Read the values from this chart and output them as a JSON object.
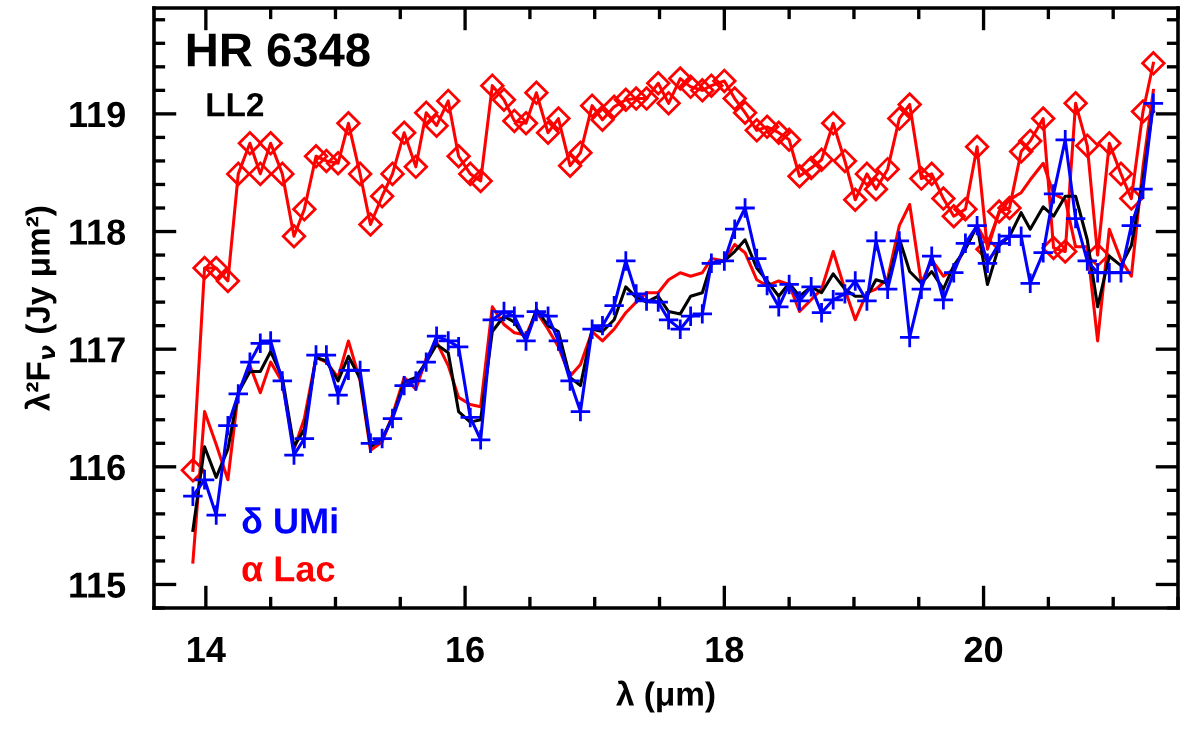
{
  "chart_data": {
    "type": "line",
    "xlabel": "λ (μm)",
    "ylabel": "λ²F$_{ν}$ (Jy μm²)",
    "annotations": [
      "HR 6348",
      "LL2"
    ],
    "x": [
      13.9,
      13.99,
      14.08,
      14.17,
      14.25,
      14.34,
      14.42,
      14.5,
      14.59,
      14.68,
      14.76,
      14.85,
      14.93,
      15.02,
      15.1,
      15.19,
      15.27,
      15.36,
      15.44,
      15.53,
      15.62,
      15.7,
      15.78,
      15.87,
      15.95,
      16.04,
      16.12,
      16.21,
      16.3,
      16.38,
      16.47,
      16.55,
      16.64,
      16.72,
      16.81,
      16.89,
      16.98,
      17.06,
      17.15,
      17.24,
      17.32,
      17.4,
      17.49,
      17.57,
      17.66,
      17.74,
      17.83,
      17.9,
      18.0,
      18.08,
      18.16,
      18.25,
      18.33,
      18.42,
      18.5,
      18.58,
      18.67,
      18.75,
      18.84,
      18.93,
      19.01,
      19.1,
      19.17,
      19.26,
      19.35,
      19.43,
      19.52,
      19.6,
      19.69,
      19.77,
      19.86,
      19.95,
      20.03,
      20.12,
      20.2,
      20.29,
      20.36,
      20.46,
      20.54,
      20.63,
      20.71,
      20.8,
      20.88,
      20.97,
      21.06,
      21.14,
      21.23,
      21.31
    ],
    "series": [
      {
        "color": "#ff0000",
        "marker": "diamond",
        "values": [
          115.97,
          117.69,
          117.69,
          117.58,
          118.49,
          118.75,
          118.49,
          118.75,
          118.49,
          117.96,
          118.19,
          118.64,
          118.6,
          118.58,
          118.92,
          118.49,
          118.06,
          118.3,
          118.49,
          118.84,
          118.55,
          119.01,
          118.9,
          119.11,
          118.64,
          118.49,
          118.43,
          119.24,
          119.12,
          118.94,
          118.92,
          119.18,
          118.84,
          118.96,
          118.56,
          118.67,
          119.07,
          118.95,
          119.06,
          119.12,
          119.13,
          119.13,
          119.26,
          119.09,
          119.3,
          119.23,
          119.2,
          119.24,
          119.28,
          119.13,
          119.01,
          118.86,
          118.89,
          118.84,
          118.78,
          118.47,
          118.54,
          118.61,
          118.92,
          118.6,
          118.27,
          118.49,
          118.36,
          118.53,
          118.96,
          119.08,
          118.45,
          118.49,
          118.28,
          118.13,
          118.19,
          118.72,
          117.85,
          118.17,
          118.2,
          118.68,
          118.77,
          118.96,
          117.86,
          117.83,
          119.09,
          118.73,
          117.8,
          118.75,
          118.49,
          118.28,
          119.02,
          119.43
        ]
      },
      {
        "name": "α Lac",
        "color": "#ff0000",
        "marker": "none",
        "values": [
          115.19,
          116.47,
          116.19,
          115.89,
          116.63,
          116.86,
          116.63,
          116.89,
          116.72,
          116.15,
          116.41,
          116.93,
          116.89,
          116.76,
          117.07,
          116.73,
          116.14,
          116.21,
          116.44,
          116.76,
          116.66,
          116.92,
          117.06,
          116.86,
          116.59,
          116.53,
          116.51,
          117.36,
          117.21,
          117.14,
          117.12,
          117.32,
          117.17,
          117.02,
          116.77,
          116.87,
          117.15,
          117.07,
          117.17,
          117.31,
          117.4,
          117.48,
          117.48,
          117.59,
          117.65,
          117.62,
          117.65,
          117.77,
          117.75,
          117.89,
          117.82,
          117.59,
          117.54,
          117.58,
          117.55,
          117.32,
          117.42,
          117.51,
          117.83,
          117.51,
          117.25,
          117.48,
          117.51,
          117.6,
          118.05,
          118.23,
          117.56,
          117.76,
          117.62,
          117.68,
          117.86,
          118.05,
          117.89,
          118.16,
          118.27,
          118.33,
          118.44,
          118.58,
          118.32,
          118.27,
          117.87,
          117.87,
          117.07,
          118.02,
          117.76,
          117.62,
          118.55,
          119.2
        ]
      },
      {
        "color": "#000000",
        "marker": "none",
        "values": [
          115.46,
          116.17,
          115.91,
          116.15,
          116.63,
          116.81,
          116.81,
          116.98,
          116.76,
          116.17,
          116.32,
          116.93,
          116.9,
          116.73,
          116.94,
          116.75,
          116.17,
          116.24,
          116.42,
          116.72,
          116.76,
          116.89,
          117.04,
          116.97,
          116.47,
          116.38,
          116.4,
          117.15,
          117.28,
          117.23,
          117.08,
          117.34,
          117.2,
          117.15,
          116.76,
          116.69,
          117.17,
          117.15,
          117.25,
          117.53,
          117.44,
          117.4,
          117.45,
          117.32,
          117.3,
          117.45,
          117.48,
          117.73,
          117.75,
          117.83,
          117.93,
          117.69,
          117.58,
          117.45,
          117.56,
          117.45,
          117.53,
          117.48,
          117.64,
          117.51,
          117.45,
          117.45,
          117.59,
          117.56,
          117.94,
          117.66,
          117.56,
          117.66,
          117.51,
          117.71,
          117.85,
          118.05,
          117.55,
          117.88,
          117.96,
          118.16,
          118.02,
          118.21,
          118.13,
          118.3,
          118.3,
          117.93,
          117.36,
          117.79,
          117.71,
          117.88,
          118.44,
          119.09
        ]
      },
      {
        "name": "δ UMi",
        "color": "#0000ff",
        "marker": "cross",
        "values": [
          115.75,
          115.89,
          115.59,
          116.35,
          116.62,
          116.89,
          117.05,
          117.07,
          116.73,
          116.1,
          116.24,
          116.95,
          116.95,
          116.61,
          116.82,
          116.82,
          116.2,
          116.24,
          116.41,
          116.69,
          116.73,
          116.89,
          117.11,
          117.07,
          117.02,
          116.42,
          116.23,
          117.25,
          117.32,
          117.28,
          117.07,
          117.32,
          117.28,
          117.07,
          116.73,
          116.47,
          117.17,
          117.2,
          117.37,
          117.75,
          117.47,
          117.41,
          117.4,
          117.25,
          117.17,
          117.28,
          117.3,
          117.73,
          117.75,
          118.02,
          118.2,
          117.77,
          117.54,
          117.36,
          117.55,
          117.41,
          117.53,
          117.31,
          117.42,
          117.47,
          117.58,
          117.41,
          117.92,
          117.51,
          117.92,
          117.1,
          117.51,
          117.79,
          117.42,
          117.65,
          117.9,
          118.05,
          117.73,
          117.9,
          117.96,
          117.96,
          117.56,
          117.82,
          118.32,
          118.78,
          118.11,
          117.75,
          117.65,
          117.65,
          117.65,
          118.05,
          118.36,
          119.09
        ]
      }
    ],
    "xlim": [
      13.6,
      21.5
    ],
    "ylim": [
      114.8,
      119.9
    ],
    "xticks": [
      14,
      16,
      18,
      20
    ],
    "yticks": [
      115,
      116,
      117,
      118,
      119
    ],
    "grid": false,
    "legend": "bottom left"
  }
}
